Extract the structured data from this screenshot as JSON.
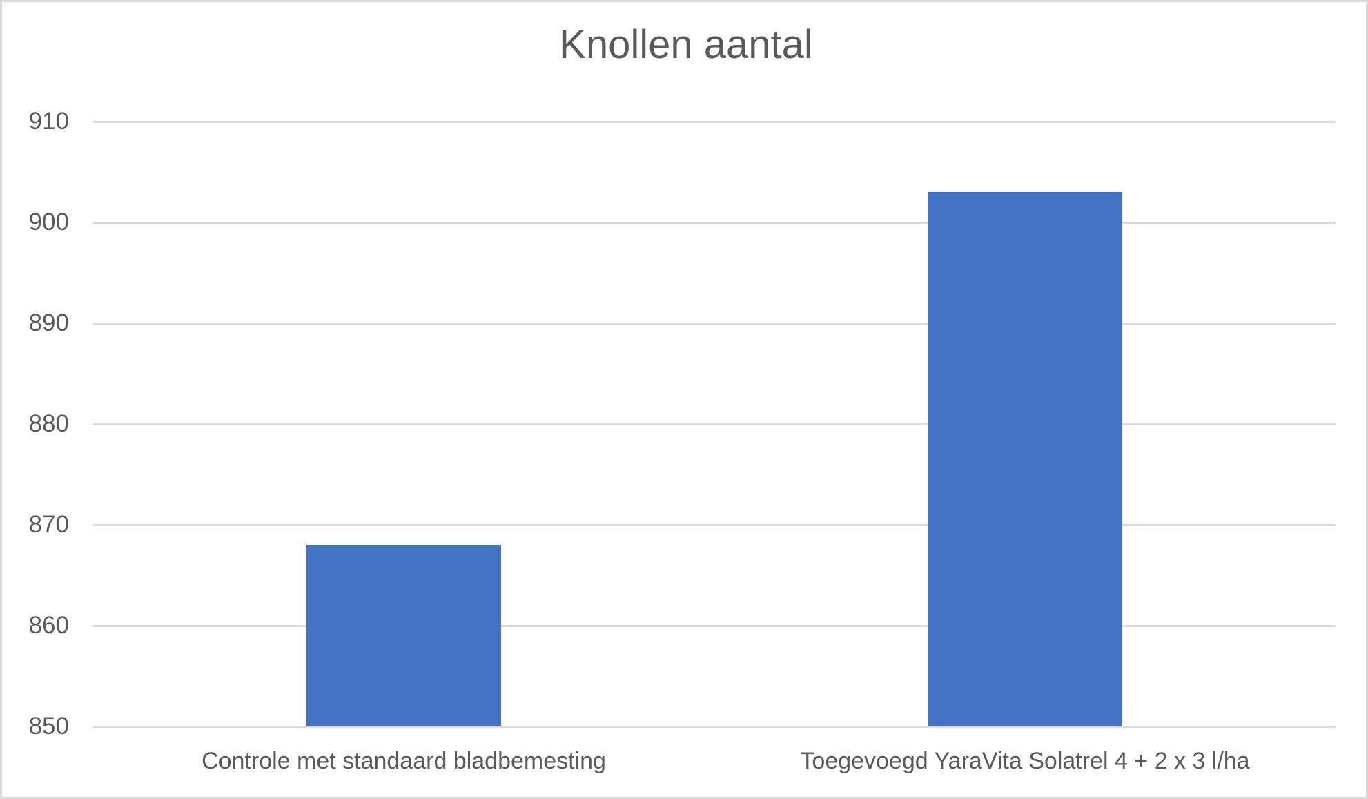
{
  "chart_data": {
    "type": "bar",
    "title": "Knollen aantal",
    "categories": [
      "Controle met standaard bladbemesting",
      "Toegevoegd YaraVita Solatrel 4 + 2 x 3 l/ha"
    ],
    "values": [
      868,
      903
    ],
    "xlabel": "",
    "ylabel": "",
    "ylim": [
      850,
      910
    ],
    "yticks": [
      850,
      860,
      870,
      880,
      890,
      900,
      910
    ],
    "grid": true,
    "legend": false,
    "colors": {
      "bar": "#4472c4",
      "gridline": "#d9d9d9",
      "text": "#595959",
      "frame_border": "#d9d9d9",
      "background": "#ffffff"
    }
  }
}
